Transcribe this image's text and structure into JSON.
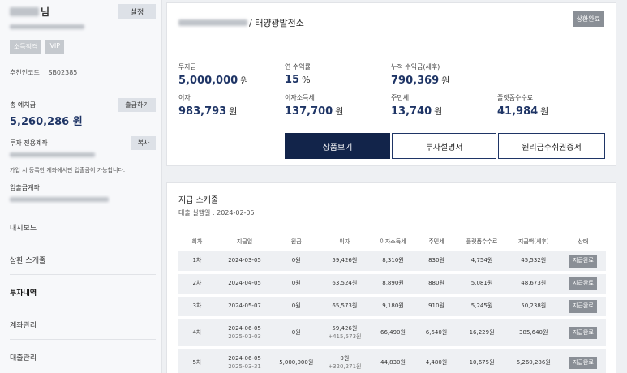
{
  "user": {
    "name_suffix": "님",
    "settings_label": "설정",
    "badges": [
      "소득적격",
      "VIP"
    ],
    "referral_label": "추천인코드",
    "referral_code": "SB02385"
  },
  "balance": {
    "label": "총 예치금",
    "withdraw_label": "출금하기",
    "value": "5,260,286 원"
  },
  "account": {
    "label": "투자 전용계좌",
    "copy_label": "복사",
    "note": "가입 시 등록한 계좌에서만 입출금이 가능합니다.",
    "deposit_label": "입출금계좌"
  },
  "nav": [
    "대시보드",
    "상환 스케줄",
    "투자내역",
    "계좌관리",
    "대출관리"
  ],
  "nav_active_index": 2,
  "product": {
    "title_suffix": "/ 태양광발전소",
    "status": "상환완료"
  },
  "stats": [
    {
      "label": "투자금",
      "value": "5,000,000",
      "unit": "원"
    },
    {
      "label": "연 수익률",
      "value": "15",
      "unit": "%"
    },
    {
      "label": "누적 수익금(세후)",
      "value": "790,369",
      "unit": "원"
    },
    {
      "label": "이자",
      "value": "983,793",
      "unit": "원"
    },
    {
      "label": "이자소득세",
      "value": "137,700",
      "unit": "원"
    },
    {
      "label": "주민세",
      "value": "13,740",
      "unit": "원"
    },
    {
      "label": "플랫폼수수료",
      "value": "41,984",
      "unit": "원"
    }
  ],
  "buttons": {
    "view_product": "상품보기",
    "investment_doc": "투자설명서",
    "receipt": "원리금수취권증서"
  },
  "schedule": {
    "title": "지급 스케줄",
    "loan_date": "대출 실행일 : 2024-02-05",
    "headers": [
      "회차",
      "지급일",
      "원금",
      "이자",
      "이자소득세",
      "주민세",
      "플랫폼수수료",
      "지급액(세후)",
      "상태"
    ],
    "rows": [
      {
        "round": "1차",
        "date": "2024-03-05",
        "date_sub": "",
        "principal": "0원",
        "interest": "59,426원",
        "interest_sub": "",
        "tax": "8,310원",
        "resident": "830원",
        "fee": "4,754원",
        "paid": "45,532원",
        "status": "지급완료"
      },
      {
        "round": "2차",
        "date": "2024-04-05",
        "date_sub": "",
        "principal": "0원",
        "interest": "63,524원",
        "interest_sub": "",
        "tax": "8,890원",
        "resident": "880원",
        "fee": "5,081원",
        "paid": "48,673원",
        "status": "지급완료"
      },
      {
        "round": "3차",
        "date": "2024-05-07",
        "date_sub": "",
        "principal": "0원",
        "interest": "65,573원",
        "interest_sub": "",
        "tax": "9,180원",
        "resident": "910원",
        "fee": "5,245원",
        "paid": "50,238원",
        "status": "지급완료"
      },
      {
        "round": "4차",
        "date": "2024-06-05",
        "date_sub": "2025-01-03",
        "principal": "0원",
        "interest": "59,426원",
        "interest_sub": "+415,573원",
        "tax": "66,490원",
        "resident": "6,640원",
        "fee": "16,229원",
        "paid": "385,640원",
        "status": "지급완료"
      },
      {
        "round": "5차",
        "date": "2024-06-05",
        "date_sub": "2025-03-31",
        "principal": "5,000,000원",
        "interest": "0원",
        "interest_sub": "+320,271원",
        "tax": "44,830원",
        "resident": "4,480원",
        "fee": "10,675원",
        "paid": "5,260,286원",
        "status": "지급완료"
      }
    ]
  }
}
